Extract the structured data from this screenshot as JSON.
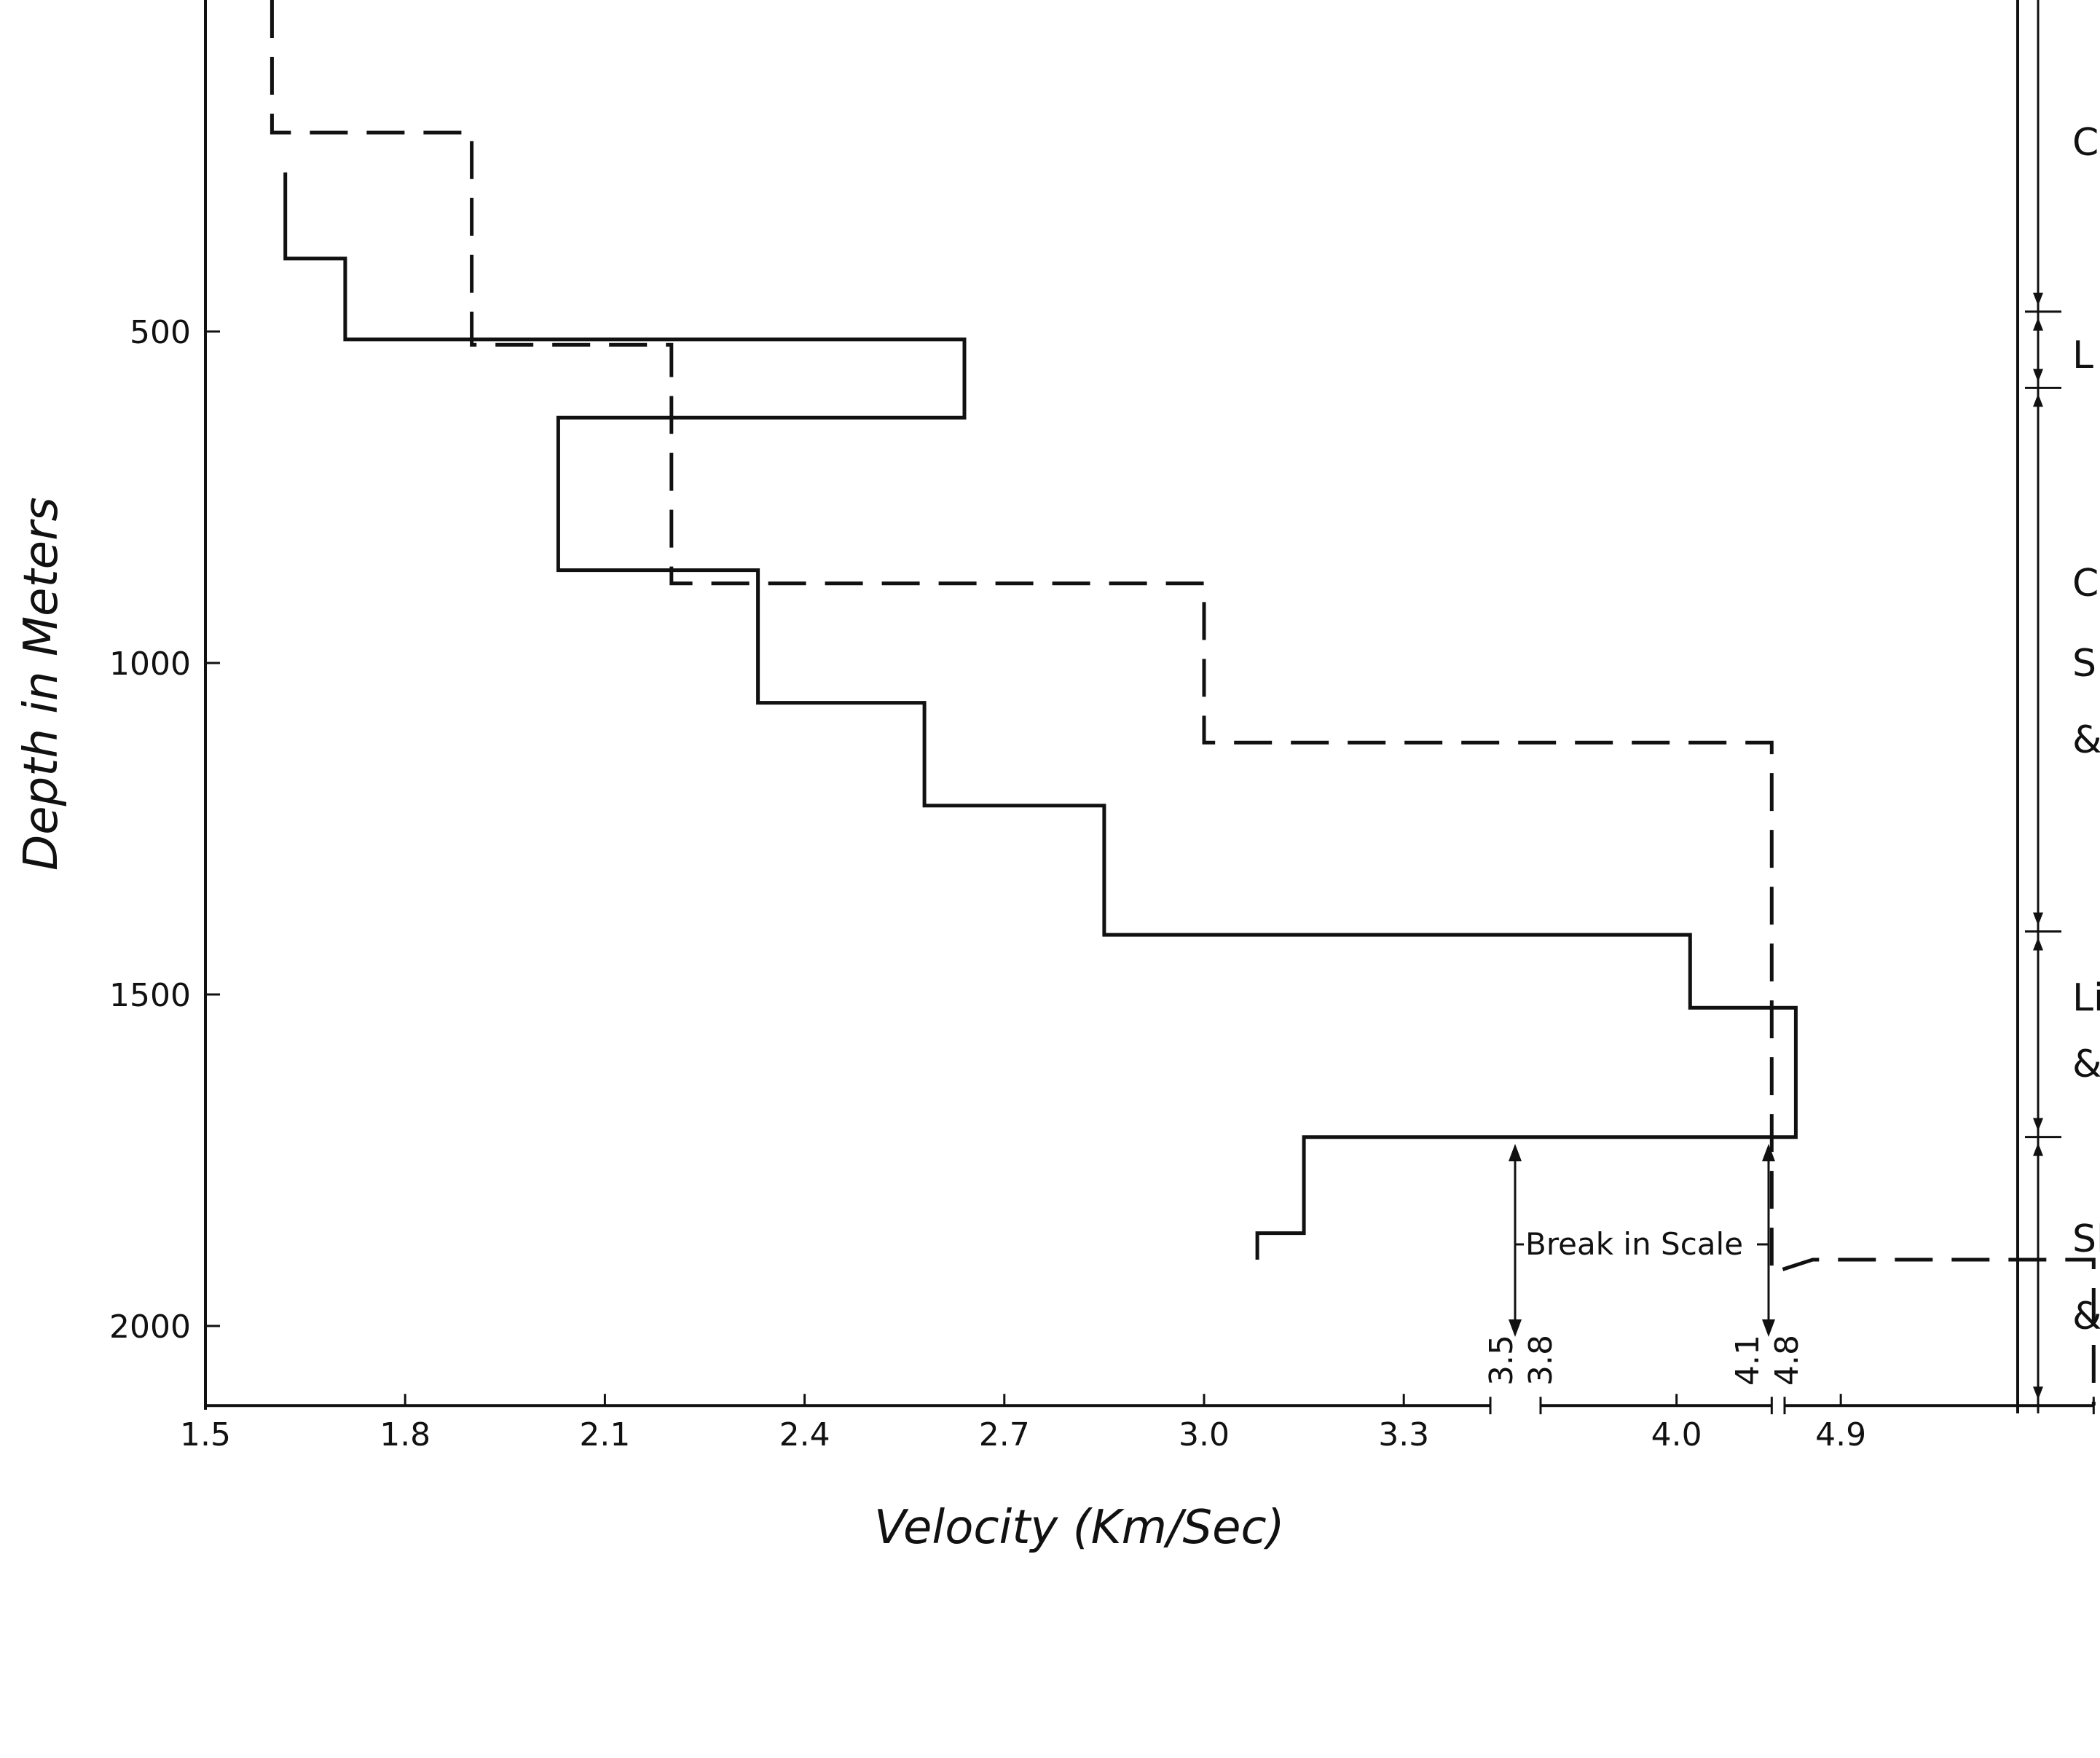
{
  "chart_data": {
    "type": "line",
    "xlabel": "Velocity (Km/Sec)",
    "ylabel": "Depth in Meters",
    "y_reversed": true,
    "ylim": [
      0,
      2120
    ],
    "x_ticks": [
      "1.5",
      "1.8",
      "2.1",
      "2.4",
      "2.7",
      "3.0",
      "3.3",
      "4.0",
      "4.9"
    ],
    "y_ticks": [
      "500",
      "1000",
      "1500",
      "2000"
    ],
    "break_values": [
      "3.5",
      "3.8",
      "4.1",
      "4.8"
    ],
    "break_label": "Break in Scale",
    "axis_segments": [
      {
        "v0": 1.5,
        "v1": 3.43
      },
      {
        "v0": 3.8,
        "v1": 4.14
      },
      {
        "v0": 4.8,
        "v1": 5.35
      }
    ],
    "series": [
      {
        "style": "solid",
        "points": [
          [
            1.62,
            260
          ],
          [
            1.62,
            390
          ],
          [
            1.71,
            390
          ],
          [
            1.71,
            512
          ],
          [
            2.64,
            512
          ],
          [
            2.64,
            630
          ],
          [
            2.03,
            630
          ],
          [
            2.03,
            860
          ],
          [
            2.33,
            860
          ],
          [
            2.33,
            1060
          ],
          [
            2.58,
            1060
          ],
          [
            2.58,
            1215
          ],
          [
            2.85,
            1215
          ],
          [
            2.85,
            1410
          ],
          [
            3.42,
            1410
          ],
          [
            3.88,
            1410
          ],
          [
            4.02,
            1410
          ],
          [
            4.02,
            1520
          ],
          [
            4.14,
            1520
          ],
          [
            4.82,
            1520
          ],
          [
            4.82,
            1715
          ],
          [
            3.42,
            1715
          ],
          [
            3.15,
            1715
          ],
          [
            3.15,
            1860
          ],
          [
            3.08,
            1860
          ],
          [
            3.08,
            1900
          ]
        ]
      },
      {
        "style": "dashed",
        "points": [
          [
            1.6,
            0
          ],
          [
            1.6,
            200
          ],
          [
            1.9,
            200
          ],
          [
            1.9,
            480
          ],
          [
            1.9,
            520
          ],
          [
            2.2,
            520
          ],
          [
            2.2,
            880
          ],
          [
            3.0,
            880
          ],
          [
            3.0,
            1120
          ],
          [
            4.14,
            1120
          ],
          [
            4.14,
            1920
          ],
          [
            4.85,
            1900
          ],
          [
            5.35,
            1900
          ],
          [
            5.35,
            2120
          ]
        ]
      }
    ],
    "lithology_labels": [
      "C",
      "L",
      "C",
      "S",
      "&",
      "Li",
      "&",
      "Sl",
      "&"
    ]
  }
}
